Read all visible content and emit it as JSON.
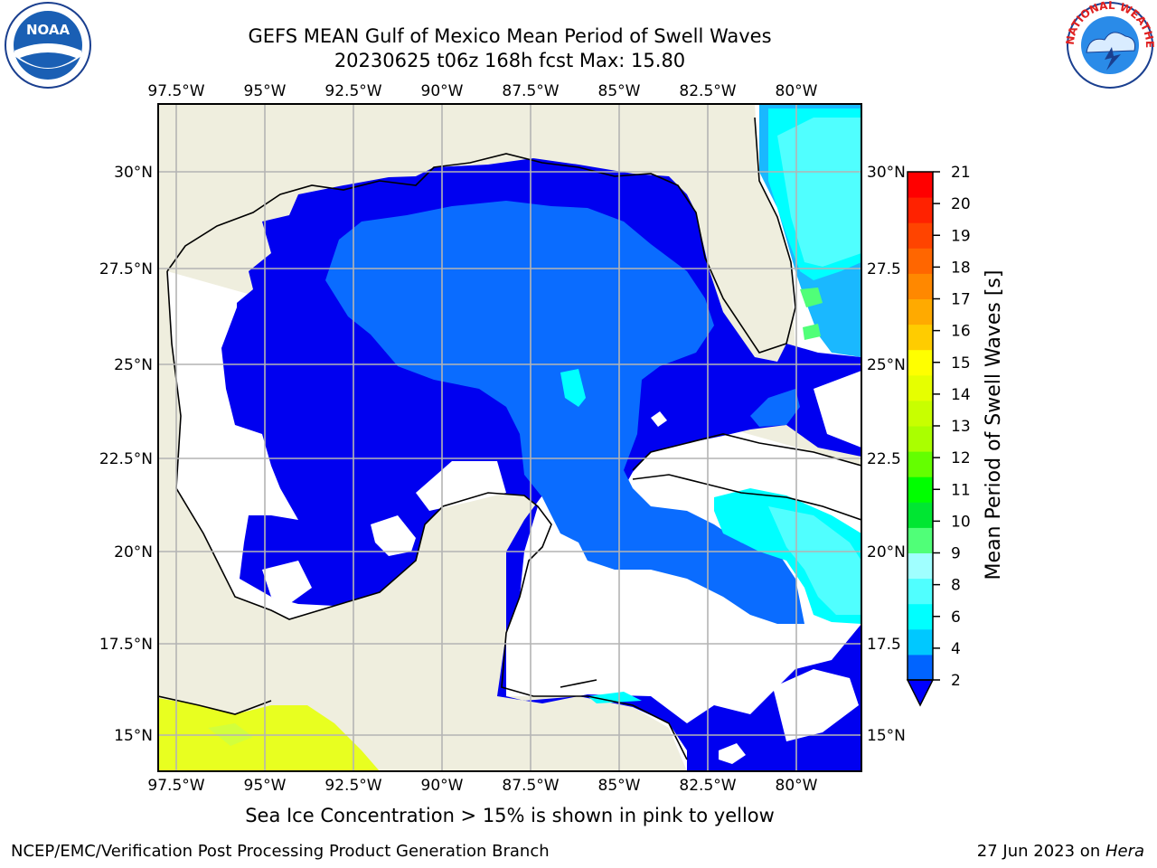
{
  "title_line1": "GEFS MEAN Gulf of Mexico Mean Period of Swell Waves",
  "title_line2": "20230625 t06z 168h fcst   Max: 15.80",
  "caption": "Sea Ice Concentration > 15% is shown in pink to yellow",
  "footer_left": "NCEP/EMC/Verification Post Processing Product Generation Branch",
  "footer_date": "27 Jun 2023 on ",
  "footer_host": "Hera",
  "logo_left": "NOAA",
  "logo_right_text": "NATIONAL WEATHER SERVICE",
  "lon_ticks": [
    "97.5°W",
    "95°W",
    "92.5°W",
    "90°W",
    "87.5°W",
    "85°W",
    "82.5°W",
    "80°W"
  ],
  "lat_ticks_left": [
    "30°N",
    "27.5°N",
    "25°N",
    "22.5°N",
    "20°N",
    "17.5°N",
    "15°N"
  ],
  "lat_ticks_right": [
    "30°N",
    "27.5",
    "25°N",
    "22.5",
    "20°N",
    "17.5",
    "15°N"
  ],
  "colorbar": {
    "label": "Mean Period of Swell Waves [s]",
    "ticks": [
      "2",
      "4",
      "6",
      "8",
      "9",
      "10",
      "11",
      "12",
      "13",
      "14",
      "15",
      "16",
      "17",
      "18",
      "19",
      "20",
      "21"
    ],
    "colors": [
      "#0064ff",
      "#00c8ff",
      "#00ffff",
      "#50ffff",
      "#a0ffff",
      "#50ff78",
      "#00e632",
      "#00ff00",
      "#64ff00",
      "#aaff00",
      "#c8ff00",
      "#e6ff00",
      "#ffff00",
      "#ffcc00",
      "#ffaa00",
      "#ff8800",
      "#ff6600",
      "#ff4400",
      "#ff2200",
      "#ff0000"
    ],
    "extend_color": "#0000ff"
  },
  "colors": {
    "land": "#efeede",
    "deep_blue": "#0000f0",
    "mid_blue": "#0a6cff",
    "cyan": "#00ffff",
    "ice_yellow": "#e8ff20",
    "grid": "#b4b4b4"
  }
}
